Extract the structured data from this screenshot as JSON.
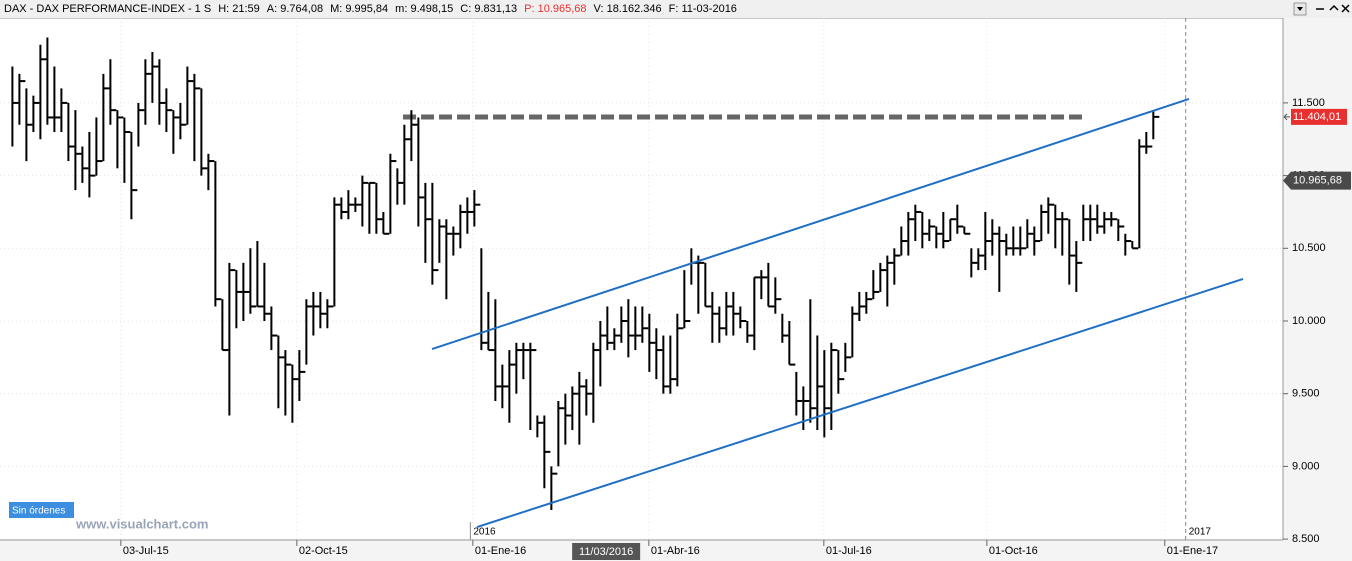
{
  "header": {
    "items": [
      {
        "text": "DAX - DAX PERFORMANCE-INDEX - 1 S"
      },
      {
        "text": "H: 21:59"
      },
      {
        "text": "A: 9.764,08"
      },
      {
        "text": "M: 9.995,84"
      },
      {
        "text": "m: 9.498,15"
      },
      {
        "text": "C: 9.831,13"
      },
      {
        "text": "P: 10.965,68",
        "color": "#e8302e"
      },
      {
        "text": "V: 18.162.346"
      },
      {
        "text": "F: 11-03-2016"
      }
    ]
  },
  "chart_data": {
    "type": "ohlc",
    "color": "#000000",
    "bars": [
      [
        11750,
        11200,
        11500
      ],
      [
        11700,
        11350,
        11650
      ],
      [
        11600,
        11100,
        11350
      ],
      [
        11550,
        11300,
        11500
      ],
      [
        11900,
        11250,
        11800
      ],
      [
        11950,
        11350,
        11400
      ],
      [
        11750,
        11300,
        11400
      ],
      [
        11600,
        11300,
        11500
      ],
      [
        11500,
        11100,
        11200
      ],
      [
        11450,
        10900,
        11150
      ],
      [
        11200,
        10950,
        11050
      ],
      [
        11300,
        10850,
        11000
      ],
      [
        11400,
        11000,
        11100
      ],
      [
        11700,
        11100,
        11600
      ],
      [
        11800,
        11350,
        11450
      ],
      [
        11450,
        11050,
        11400
      ],
      [
        11400,
        10950,
        11300
      ],
      [
        11300,
        10700,
        10900
      ],
      [
        11500,
        11200,
        11450
      ],
      [
        11800,
        11350,
        11700
      ],
      [
        11850,
        11500,
        11750
      ],
      [
        11800,
        11350,
        11500
      ],
      [
        11600,
        11300,
        11450
      ],
      [
        11450,
        11150,
        11400
      ],
      [
        11500,
        11250,
        11350
      ],
      [
        11750,
        11350,
        11650
      ],
      [
        11700,
        11100,
        11600
      ],
      [
        11600,
        11000,
        11050
      ],
      [
        11150,
        10900,
        11100
      ],
      [
        11100,
        10100,
        10150
      ],
      [
        10150,
        9800,
        9800
      ],
      [
        10400,
        9350,
        10350
      ],
      [
        10350,
        9950,
        10200
      ],
      [
        10400,
        10000,
        10200
      ],
      [
        10500,
        10050,
        10100
      ],
      [
        10550,
        10100,
        10100
      ],
      [
        10400,
        10000,
        10050
      ],
      [
        10100,
        9800,
        9900
      ],
      [
        9900,
        9400,
        9750
      ],
      [
        9800,
        9350,
        9700
      ],
      [
        9700,
        9300,
        9600
      ],
      [
        9800,
        9450,
        9650
      ],
      [
        10150,
        9700,
        10100
      ],
      [
        10200,
        9900,
        10100
      ],
      [
        10200,
        9950,
        10050
      ],
      [
        10150,
        9950,
        10100
      ],
      [
        10850,
        10100,
        10800
      ],
      [
        10850,
        10700,
        10750
      ],
      [
        10900,
        10700,
        10800
      ],
      [
        10850,
        10750,
        10800
      ],
      [
        11000,
        10650,
        10950
      ],
      [
        10950,
        10600,
        10950
      ],
      [
        10950,
        10600,
        10700
      ],
      [
        10750,
        10600,
        10600
      ],
      [
        11150,
        10600,
        11100
      ],
      [
        11050,
        10800,
        10950
      ],
      [
        11350,
        10800,
        11250
      ],
      [
        11450,
        11100,
        11350
      ],
      [
        11400,
        10650,
        10850
      ],
      [
        10950,
        10400,
        10700
      ],
      [
        10950,
        10250,
        10350
      ],
      [
        10700,
        10400,
        10650
      ],
      [
        10700,
        10150,
        10600
      ],
      [
        10650,
        10450,
        10600
      ],
      [
        10800,
        10500,
        10750
      ],
      [
        10850,
        10600,
        10750
      ],
      [
        10900,
        10650,
        10800
      ],
      [
        10500,
        9800,
        9850
      ],
      [
        10200,
        9800,
        9800
      ],
      [
        10150,
        9450,
        9550
      ],
      [
        9700,
        9400,
        9550
      ],
      [
        9800,
        9300,
        9700
      ],
      [
        9850,
        9500,
        9800
      ],
      [
        9850,
        9600,
        9800
      ],
      [
        9850,
        9250,
        9800
      ],
      [
        9350,
        9200,
        9300
      ],
      [
        9350,
        8850,
        9100
      ],
      [
        9000,
        8700,
        8950
      ],
      [
        9450,
        9000,
        9400
      ],
      [
        9500,
        9150,
        9350
      ],
      [
        9550,
        9250,
        9500
      ],
      [
        9650,
        9150,
        9550
      ],
      [
        9600,
        9350,
        9500
      ],
      [
        9850,
        9300,
        9800
      ],
      [
        10000,
        9550,
        9900
      ],
      [
        10100,
        9800,
        9850
      ],
      [
        9950,
        9800,
        9900
      ],
      [
        10100,
        9850,
        10000
      ],
      [
        10150,
        9750,
        9900
      ],
      [
        10100,
        9800,
        9900
      ],
      [
        10100,
        9850,
        9950
      ],
      [
        10050,
        9650,
        9850
      ],
      [
        9950,
        9600,
        9800
      ],
      [
        9900,
        9500,
        9550
      ],
      [
        9900,
        9500,
        9600
      ],
      [
        10050,
        9550,
        9950
      ],
      [
        10350,
        9950,
        10000
      ],
      [
        10500,
        10250,
        10400
      ],
      [
        10450,
        10050,
        10400
      ],
      [
        10400,
        10100,
        10100
      ],
      [
        10200,
        9850,
        10050
      ],
      [
        10100,
        9850,
        9950
      ],
      [
        10200,
        9900,
        10100
      ],
      [
        10200,
        9900,
        10050
      ],
      [
        10100,
        9950,
        10000
      ],
      [
        10000,
        9850,
        9900
      ],
      [
        10300,
        9800,
        10300
      ],
      [
        10350,
        10150,
        10300
      ],
      [
        10400,
        10100,
        10100
      ],
      [
        10300,
        10050,
        10150
      ],
      [
        10050,
        9850,
        9900
      ],
      [
        10000,
        9700,
        9700
      ],
      [
        9650,
        9350,
        9450
      ],
      [
        9550,
        9250,
        9450
      ],
      [
        10150,
        9300,
        9400
      ],
      [
        9900,
        9250,
        9550
      ],
      [
        9800,
        9200,
        9400
      ],
      [
        9850,
        9250,
        9800
      ],
      [
        9800,
        9500,
        9600
      ],
      [
        9850,
        9650,
        9750
      ],
      [
        10100,
        9750,
        10050
      ],
      [
        10200,
        10000,
        10100
      ],
      [
        10200,
        10050,
        10150
      ],
      [
        10350,
        10150,
        10200
      ],
      [
        10400,
        10200,
        10350
      ],
      [
        10450,
        10100,
        10400
      ],
      [
        10500,
        10250,
        10450
      ],
      [
        10650,
        10450,
        10550
      ],
      [
        10750,
        10450,
        10700
      ],
      [
        10800,
        10550,
        10750
      ],
      [
        10750,
        10500,
        10600
      ],
      [
        10700,
        10550,
        10650
      ],
      [
        10650,
        10500,
        10600
      ],
      [
        10750,
        10500,
        10550
      ],
      [
        10700,
        10550,
        10700
      ],
      [
        10800,
        10600,
        10650
      ],
      [
        10650,
        10600,
        10600
      ],
      [
        10500,
        10300,
        10400
      ],
      [
        10500,
        10350,
        10450
      ],
      [
        10750,
        10350,
        10550
      ],
      [
        10700,
        10450,
        10600
      ],
      [
        10650,
        10200,
        10550
      ],
      [
        10600,
        10450,
        10500
      ],
      [
        10650,
        10450,
        10500
      ],
      [
        10650,
        10450,
        10500
      ],
      [
        10700,
        10500,
        10600
      ],
      [
        10650,
        10450,
        10550
      ],
      [
        10800,
        10550,
        10750
      ],
      [
        10850,
        10600,
        10800
      ],
      [
        10800,
        10500,
        10700
      ],
      [
        10750,
        10450,
        10700
      ],
      [
        10700,
        10250,
        10450
      ],
      [
        10550,
        10200,
        10400
      ],
      [
        10800,
        10550,
        10700
      ],
      [
        10800,
        10550,
        10700
      ],
      [
        10800,
        10600,
        10650
      ],
      [
        10750,
        10600,
        10700
      ],
      [
        10750,
        10650,
        10700
      ],
      [
        10700,
        10550,
        10650
      ],
      [
        10600,
        10450,
        10550
      ],
      [
        10550,
        10500,
        10500
      ],
      [
        11250,
        10500,
        11200
      ],
      [
        11300,
        11150,
        11200
      ],
      [
        11450,
        11250,
        11404.01
      ]
    ],
    "xlim": [
      -1.7,
      181.6
    ],
    "xticks": [
      {
        "value": 15.57,
        "label": "03-Jul-15"
      },
      {
        "value": 40.71,
        "label": "02-Oct-15"
      },
      {
        "value": 65.86,
        "label": "01-Ene-16"
      },
      {
        "value": 91,
        "label": "01-Abr-16"
      },
      {
        "value": 116,
        "label": "01-Jul-16"
      },
      {
        "value": 139.29,
        "label": "01-Oct-16"
      },
      {
        "value": 164.71,
        "label": "01-Ene-17"
      }
    ],
    "ylim": [
      8480,
      12084
    ],
    "yticks": [
      {
        "value": 8500,
        "label": "8.500"
      },
      {
        "value": 9000,
        "label": "9.000"
      },
      {
        "value": 9500,
        "label": "9.500"
      },
      {
        "value": 10000,
        "label": "10.000"
      },
      {
        "value": 10500,
        "label": "10.500"
      },
      {
        "value": 11000,
        "label": "11.000"
      },
      {
        "value": 11500,
        "label": "11.500"
      }
    ],
    "year_markers": [
      {
        "value": 65.5,
        "label": "2016"
      },
      {
        "value": 167.7,
        "label": "2017"
      }
    ],
    "trend_lines": [
      {
        "color": "#1f6fc5",
        "points": [
          [
            60.02,
            9807
          ],
          [
            168.17,
            11527
          ]
        ]
      },
      {
        "color": "#1f6fc5",
        "points": [
          [
            66.45,
            8583
          ],
          [
            175.89,
            10289
          ]
        ]
      }
    ],
    "resistance": {
      "color": "#666666",
      "points": [
        [
          55.88,
          11403
        ],
        [
          152.88,
          11403
        ]
      ]
    },
    "last_price": {
      "value": 11404.01,
      "label": "11.404,01",
      "color": "#e8302e"
    },
    "ref_price": {
      "value": 10965.68,
      "label": "10.965,68",
      "color": "#4a4a4a"
    },
    "cursor_date": {
      "value": 84.9,
      "label": "11/03/2016"
    }
  },
  "footer": {
    "orders": "Sin órdenes",
    "watermark": "www.visualchart.com"
  }
}
